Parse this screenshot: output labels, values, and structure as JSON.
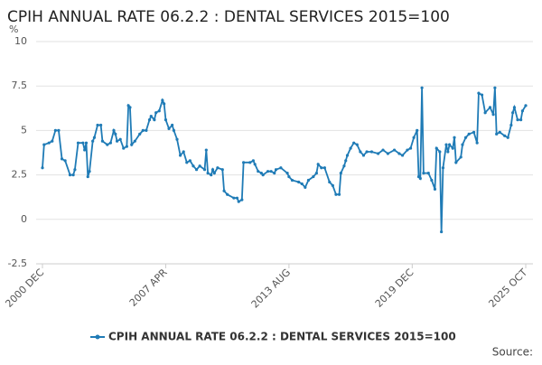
{
  "chart_data": {
    "type": "line",
    "title": "CPIH ANNUAL RATE 06.2.2 : DENTAL SERVICES 2015=100",
    "y_label": "%",
    "source": "Source:",
    "series": [
      {
        "name": "CPIH ANNUAL RATE 06.2.2 : DENTAL SERVICES 2015=100",
        "color": "#1f7bb6",
        "x": [
          "2000 DEC",
          "2001 JAN",
          "2001 APR",
          "2001 JUN",
          "2001 AUG",
          "2001 OCT",
          "2001 DEC",
          "2002 FEB",
          "2002 MAY",
          "2002 JUL",
          "2002 AUG",
          "2002 OCT",
          "2003 JAN",
          "2003 FEB",
          "2003 MAR",
          "2003 APR",
          "2003 MAY",
          "2003 JUL",
          "2003 AUG",
          "2003 OCT",
          "2003 DEC",
          "2004 JAN",
          "2004 APR",
          "2004 JUN",
          "2004 AUG",
          "2004 SEP",
          "2004 OCT",
          "2004 DEC",
          "2005 FEB",
          "2005 APR",
          "2005 MAY",
          "2005 JUN",
          "2005 JUL",
          "2005 SEP",
          "2005 DEC",
          "2006 FEB",
          "2006 APR",
          "2006 JUN",
          "2006 JUL",
          "2006 SEP",
          "2006 OCT",
          "2006 DEC",
          "2007 FEB",
          "2007 MAR",
          "2007 APR",
          "2007 JUN",
          "2007 AUG",
          "2007 SEP",
          "2007 NOV",
          "2008 JAN",
          "2008 MAR",
          "2008 MAY",
          "2008 JUL",
          "2008 SEP",
          "2008 NOV",
          "2009 JAN",
          "2009 APR",
          "2009 MAY",
          "2009 JUN",
          "2009 AUG",
          "2009 SEP",
          "2009 OCT",
          "2009 DEC",
          "2010 MAR",
          "2010 APR",
          "2010 JUN",
          "2010 OCT",
          "2010 DEC",
          "2011 JAN",
          "2011 MAR",
          "2011 APR",
          "2011 AUG",
          "2011 OCT",
          "2011 NOV",
          "2012 JAN",
          "2012 MAR",
          "2012 APR",
          "2012 JUL",
          "2012 SEP",
          "2012 NOV",
          "2012 DEC",
          "2013 MAR",
          "2013 JUL",
          "2013 AUG",
          "2013 OCT",
          "2014 FEB",
          "2014 APR",
          "2014 JUN",
          "2014 AUG",
          "2014 NOV",
          "2015 JAN",
          "2015 FEB",
          "2015 APR",
          "2015 JUN",
          "2015 SEP",
          "2015 NOV",
          "2016 JAN",
          "2016 MAR",
          "2016 APR",
          "2016 JUN",
          "2016 JUL",
          "2016 AUG",
          "2016 OCT",
          "2016 DEC",
          "2017 FEB",
          "2017 APR",
          "2017 JUN",
          "2017 AUG",
          "2017 NOV",
          "2018 MAR",
          "2018 JUN",
          "2018 SEP",
          "2019 JAN",
          "2019 APR",
          "2019 JUN",
          "2019 SEP",
          "2019 NOV",
          "2020 JAN",
          "2020 MAR",
          "2020 APR",
          "2020 MAY",
          "2020 JUN",
          "2020 JUL",
          "2020 OCT",
          "2020 DEC",
          "2021 FEB",
          "2021 MAR",
          "2021 MAY",
          "2021 JUN",
          "2021 JUL",
          "2021 SEP",
          "2021 OCT",
          "2021 NOV",
          "2022 JAN",
          "2022 FEB",
          "2022 MAR",
          "2022 JUN",
          "2022 JUL",
          "2022 SEP",
          "2022 NOV",
          "2023 FEB",
          "2023 APR",
          "2023 MAY",
          "2023 JUL",
          "2023 SEP",
          "2023 DEC",
          "2024 FEB",
          "2024 MAR",
          "2024 APR",
          "2024 JUN",
          "2024 SEP",
          "2024 NOV",
          "2025 JAN",
          "2025 FEB",
          "2025 MAR",
          "2025 MAY",
          "2025 JUL",
          "2025 AUG",
          "2025 OCT"
        ],
        "values": [
          2.9,
          4.2,
          4.3,
          4.4,
          5.0,
          5.0,
          3.4,
          3.3,
          2.5,
          2.5,
          2.8,
          4.3,
          4.3,
          3.9,
          4.3,
          2.4,
          2.7,
          4.4,
          4.6,
          5.3,
          5.3,
          4.4,
          4.2,
          4.3,
          5.0,
          4.8,
          4.4,
          4.5,
          4.0,
          4.1,
          6.4,
          6.3,
          4.2,
          4.4,
          4.8,
          5.0,
          5.0,
          5.6,
          5.8,
          5.6,
          6.0,
          6.1,
          6.7,
          6.5,
          5.6,
          5.1,
          5.3,
          5.0,
          4.5,
          3.6,
          3.8,
          3.2,
          3.3,
          3.0,
          2.8,
          3.0,
          2.8,
          3.9,
          2.6,
          2.5,
          2.8,
          2.6,
          2.9,
          2.8,
          1.6,
          1.4,
          1.2,
          1.2,
          1.0,
          1.1,
          3.2,
          3.2,
          3.3,
          3.1,
          2.7,
          2.6,
          2.5,
          2.7,
          2.7,
          2.6,
          2.8,
          2.9,
          2.6,
          2.4,
          2.2,
          2.1,
          2.0,
          1.8,
          2.2,
          2.4,
          2.6,
          3.1,
          2.9,
          2.9,
          2.1,
          1.9,
          1.4,
          1.4,
          2.6,
          3.0,
          3.3,
          3.6,
          4.0,
          4.3,
          4.2,
          3.8,
          3.6,
          3.8,
          3.8,
          3.7,
          3.9,
          3.7,
          3.9,
          3.7,
          3.6,
          3.9,
          4.0,
          4.6,
          5.0,
          2.4,
          2.3,
          7.4,
          2.6,
          2.6,
          2.2,
          1.7,
          4.0,
          3.8,
          -0.7,
          2.9,
          4.2,
          3.8,
          4.2,
          4.0,
          4.6,
          3.2,
          3.5,
          4.2,
          4.6,
          4.8,
          4.9,
          4.3,
          7.1,
          7.0,
          6.0,
          6.3,
          5.9,
          7.4,
          4.8,
          4.9,
          4.7,
          4.6,
          5.3,
          6.0,
          6.3,
          5.6,
          5.6,
          6.1,
          6.4
        ]
      }
    ],
    "xticks": [
      "2000 DEC",
      "2007 APR",
      "2013 AUG",
      "2019 DEC",
      "2025 OCT"
    ],
    "ylim": [
      -2.5,
      10
    ],
    "yticks": [
      10,
      7.5,
      5,
      2.5,
      0,
      -2.5
    ],
    "grid": true,
    "legend": "bottom"
  }
}
